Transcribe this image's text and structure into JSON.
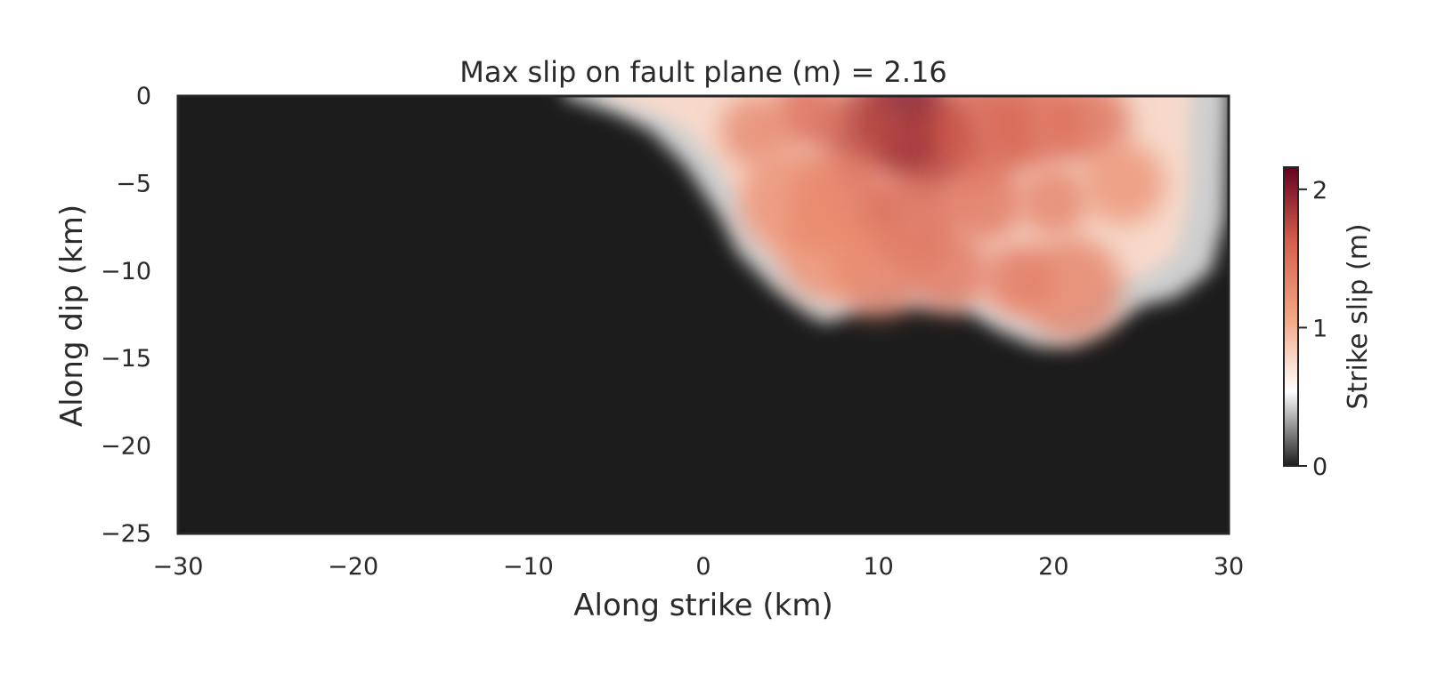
{
  "chart_data": {
    "type": "heatmap",
    "title": "Max slip on fault plane (m) = 2.16",
    "xlabel": "Along strike (km)",
    "ylabel": "Along dip (km)",
    "xlim": [
      -30,
      30
    ],
    "ylim": [
      -25,
      0
    ],
    "x_ticks": [
      -30,
      -20,
      -10,
      0,
      10,
      20,
      30
    ],
    "y_ticks": [
      0,
      -5,
      -10,
      -15,
      -20,
      -25
    ],
    "x_tick_labels": [
      "−30",
      "−20",
      "−10",
      "0",
      "10",
      "20",
      "30"
    ],
    "y_tick_labels": [
      "0",
      "−5",
      "−10",
      "−15",
      "−20",
      "−25"
    ],
    "grid": false,
    "colorbar": {
      "label": "Strike slip (m)",
      "range": [
        0,
        2.16
      ],
      "ticks": [
        0,
        1,
        2
      ],
      "tick_labels": [
        "0",
        "1",
        "2"
      ],
      "colormap": [
        "#1c1c1c",
        "#ffffff",
        "#f4a582",
        "#d6604d",
        "#67001f"
      ]
    },
    "max_slip": 2.16,
    "rupture_boundary": [
      [
        -8,
        0
      ],
      [
        -5,
        -1
      ],
      [
        -3,
        -2
      ],
      [
        -1,
        -4
      ],
      [
        1,
        -7
      ],
      [
        2,
        -9
      ],
      [
        4,
        -11
      ],
      [
        6,
        -12.5
      ],
      [
        7,
        -13
      ],
      [
        9,
        -12.2
      ],
      [
        12,
        -12
      ],
      [
        15,
        -12.3
      ],
      [
        17,
        -13.5
      ],
      [
        19,
        -14.3
      ],
      [
        21,
        -14.3
      ],
      [
        23,
        -13.4
      ],
      [
        25,
        -12
      ],
      [
        27,
        -11.5
      ],
      [
        29,
        -10
      ],
      [
        29.8,
        -7
      ],
      [
        30,
        0
      ]
    ],
    "slip_patches": [
      {
        "x": 11.5,
        "y": -1.5,
        "slip": 2.16
      },
      {
        "x": 13,
        "y": -3,
        "slip": 1.9
      },
      {
        "x": 9,
        "y": -2,
        "slip": 1.8
      },
      {
        "x": 6,
        "y": -1,
        "slip": 1.6
      },
      {
        "x": 16,
        "y": -2,
        "slip": 1.7
      },
      {
        "x": 19,
        "y": -1.5,
        "slip": 1.6
      },
      {
        "x": 22,
        "y": -1.5,
        "slip": 1.55
      },
      {
        "x": 3,
        "y": -2,
        "slip": 1.35
      },
      {
        "x": 8,
        "y": -6,
        "slip": 1.55
      },
      {
        "x": 12,
        "y": -7,
        "slip": 1.6
      },
      {
        "x": 16,
        "y": -6,
        "slip": 1.5
      },
      {
        "x": 20,
        "y": -6,
        "slip": 1.4
      },
      {
        "x": 5,
        "y": -6,
        "slip": 1.3
      },
      {
        "x": 10,
        "y": -10,
        "slip": 1.45
      },
      {
        "x": 14,
        "y": -10,
        "slip": 1.5
      },
      {
        "x": 18,
        "y": -10.5,
        "slip": 1.5
      },
      {
        "x": 21,
        "y": -11,
        "slip": 1.4
      },
      {
        "x": 7,
        "y": -9,
        "slip": 1.3
      },
      {
        "x": 24,
        "y": -5,
        "slip": 1.25
      }
    ]
  }
}
